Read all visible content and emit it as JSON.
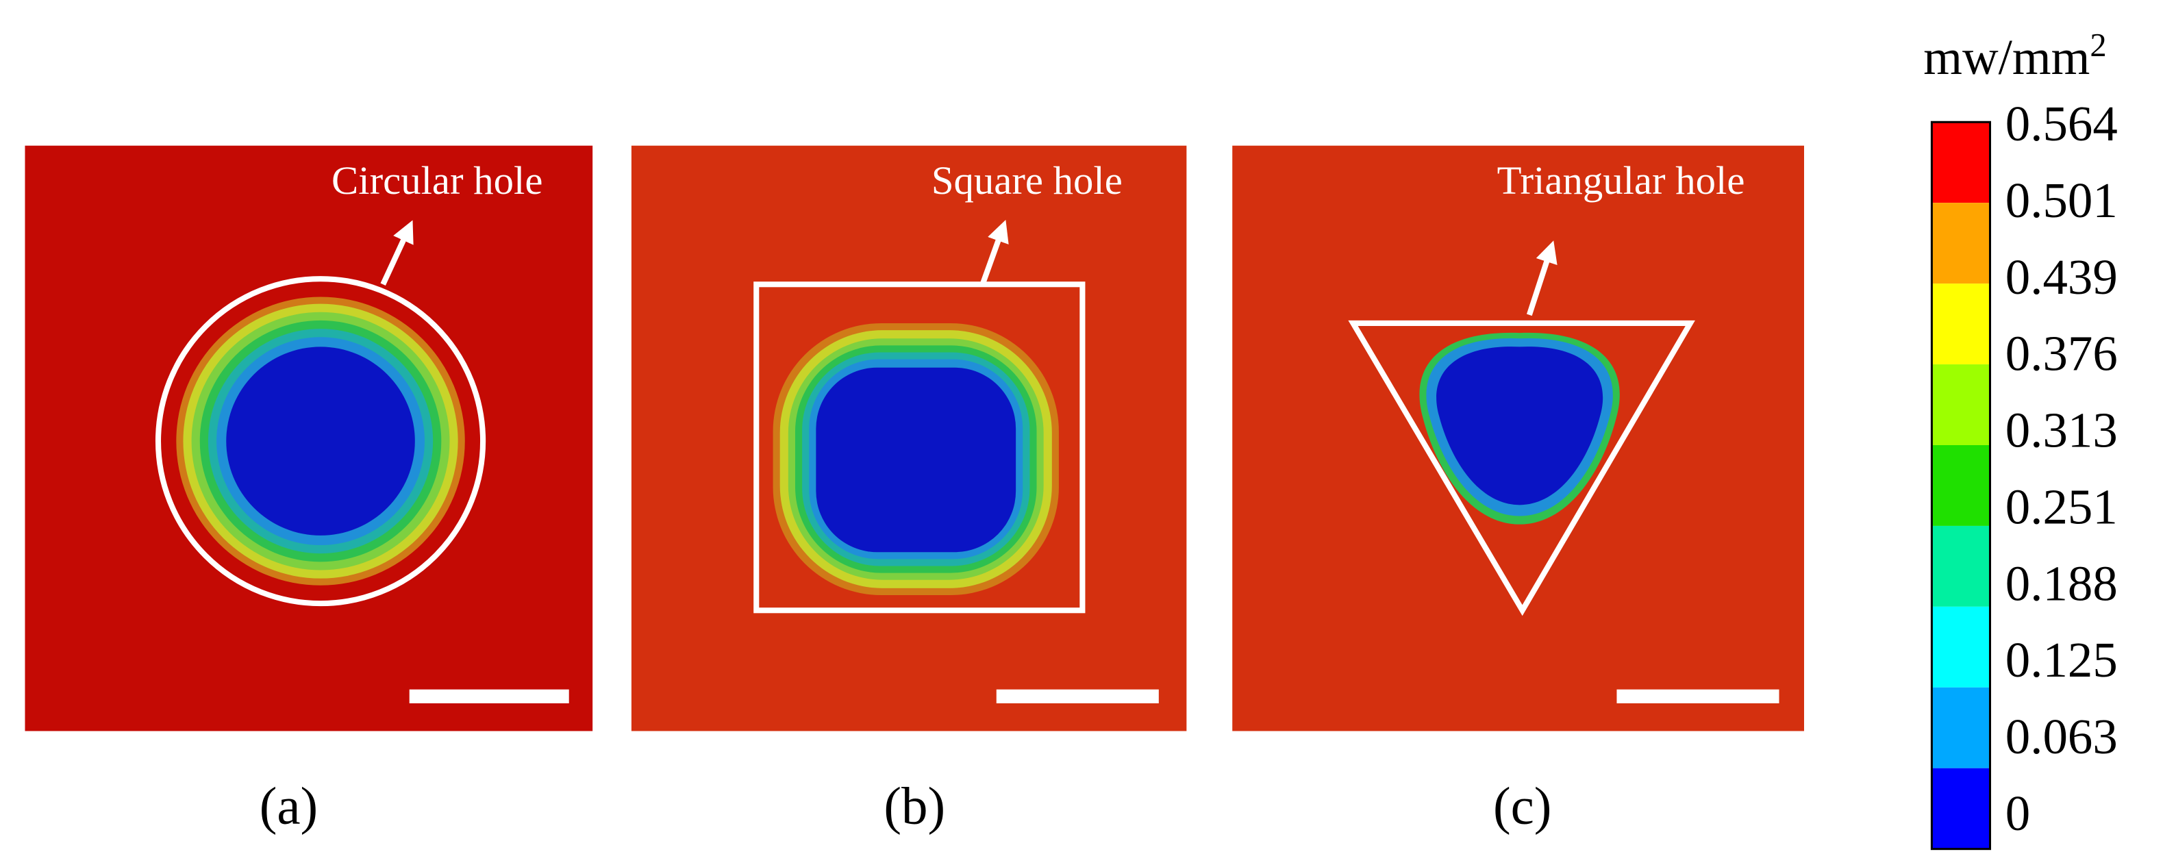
{
  "panels": [
    {
      "label": "Circular hole",
      "caption": "(a)"
    },
    {
      "label": "Square hole",
      "caption": "(b)"
    },
    {
      "label": "Triangular hole",
      "caption": "(c)"
    }
  ],
  "colorbar": {
    "unit": "mw/mm",
    "unit_exponent": "2",
    "ticks": [
      0.564,
      0.501,
      0.439,
      0.376,
      0.313,
      0.251,
      0.188,
      0.125,
      0.063,
      0
    ],
    "colors": [
      "#ff0000",
      "#ffa500",
      "#ffff00",
      "#9dff00",
      "#1fe000",
      "#00f0a0",
      "#00ffff",
      "#00a8ff",
      "#0000ff"
    ]
  }
}
